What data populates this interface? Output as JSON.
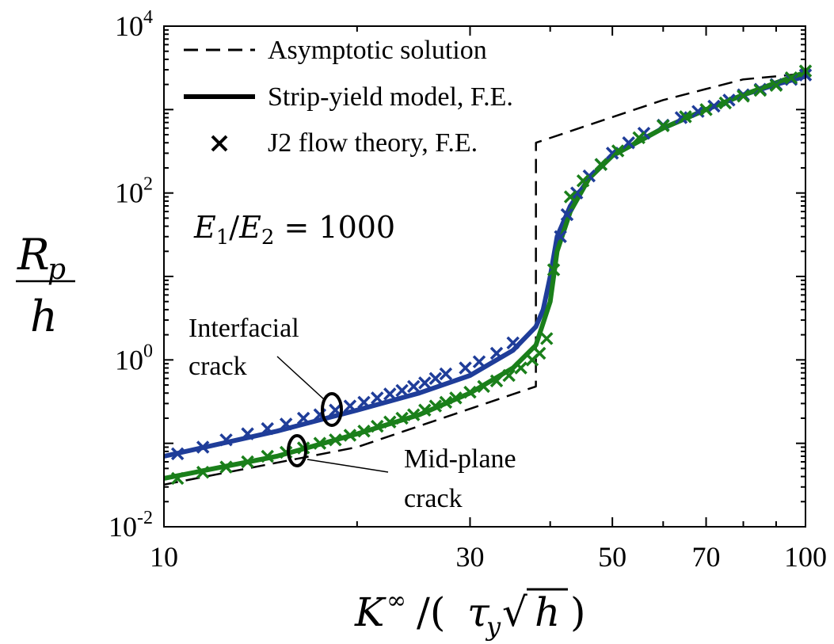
{
  "chart_data": {
    "type": "line",
    "xscale": "log",
    "yscale": "log",
    "xlim": [
      10,
      100
    ],
    "ylim": [
      0.01,
      10000
    ],
    "x_ticks": [
      {
        "value": 10,
        "label": "10"
      },
      {
        "value": 30,
        "label": "30"
      },
      {
        "value": 50,
        "label": "50"
      },
      {
        "value": 70,
        "label": "70"
      },
      {
        "value": 100,
        "label": "100"
      }
    ],
    "y_ticks": [
      {
        "value": 0.01,
        "base": "10",
        "exp": "-2"
      },
      {
        "value": 1,
        "base": "10",
        "exp": "0"
      },
      {
        "value": 100,
        "base": "10",
        "exp": "2"
      },
      {
        "value": 10000,
        "base": "10",
        "exp": "4"
      }
    ],
    "xlabel": "K∞/(τy√h)",
    "ylabel": "Rp/h",
    "grid": false,
    "legend_position": "top-left",
    "legend": [
      {
        "label": "Asymptotic solution",
        "style": "dashed"
      },
      {
        "label": "Strip-yield model, F.E.",
        "style": "solid"
      },
      {
        "label": "J2 flow theory, F.E.",
        "style": "marker-x"
      }
    ],
    "parameter_text": "E1/E2 = 1000",
    "annotations": [
      {
        "lines": [
          "Interfacial",
          "crack"
        ]
      },
      {
        "lines": [
          "Mid-plane",
          "crack"
        ]
      }
    ],
    "colors": {
      "interfacial": "#1f3d99",
      "midplane": "#1a7f1a",
      "asymptotic": "#000000"
    },
    "series": [
      {
        "name": "Asymptotic solution",
        "style": "dashed",
        "points": [
          [
            10,
            0.032
          ],
          [
            20,
            0.09
          ],
          [
            38,
            0.48
          ],
          [
            38.01,
            400
          ],
          [
            60,
            1300
          ],
          [
            80,
            2300
          ],
          [
            100,
            2700
          ]
        ]
      },
      {
        "name": "Strip-yield model, F.E. (interfacial crack)",
        "style": "solid",
        "color": "interfacial",
        "points": [
          [
            10,
            0.07
          ],
          [
            15,
            0.14
          ],
          [
            20,
            0.25
          ],
          [
            25,
            0.4
          ],
          [
            30,
            0.65
          ],
          [
            35,
            1.3
          ],
          [
            38,
            2.5
          ],
          [
            39,
            4
          ],
          [
            40,
            10
          ],
          [
            41,
            30
          ],
          [
            43,
            70
          ],
          [
            46,
            150
          ],
          [
            50,
            280
          ],
          [
            60,
            600
          ],
          [
            70,
            1000
          ],
          [
            80,
            1500
          ],
          [
            90,
            2000
          ],
          [
            100,
            2500
          ]
        ]
      },
      {
        "name": "Strip-yield model, F.E. (mid-plane crack)",
        "style": "solid",
        "color": "midplane",
        "points": [
          [
            10,
            0.038
          ],
          [
            15,
            0.07
          ],
          [
            20,
            0.13
          ],
          [
            25,
            0.22
          ],
          [
            30,
            0.4
          ],
          [
            35,
            0.8
          ],
          [
            38,
            1.5
          ],
          [
            40,
            5
          ],
          [
            41,
            20
          ],
          [
            43,
            60
          ],
          [
            46,
            150
          ],
          [
            50,
            280
          ],
          [
            60,
            600
          ],
          [
            70,
            1000
          ],
          [
            80,
            1500
          ],
          [
            90,
            2100
          ],
          [
            100,
            2800
          ]
        ]
      },
      {
        "name": "J2 flow theory, F.E. (interfacial crack)",
        "style": "marker-x",
        "color": "interfacial",
        "points": [
          [
            10.5,
            0.075
          ],
          [
            11.5,
            0.09
          ],
          [
            12.5,
            0.11
          ],
          [
            13.5,
            0.13
          ],
          [
            14.5,
            0.15
          ],
          [
            15.5,
            0.17
          ],
          [
            16.5,
            0.2
          ],
          [
            17.5,
            0.22
          ],
          [
            18.5,
            0.25
          ],
          [
            19.5,
            0.28
          ],
          [
            20.5,
            0.31
          ],
          [
            21.5,
            0.35
          ],
          [
            22.5,
            0.39
          ],
          [
            23.5,
            0.43
          ],
          [
            24.5,
            0.48
          ],
          [
            25.5,
            0.53
          ],
          [
            26.5,
            0.6
          ],
          [
            27.5,
            0.68
          ],
          [
            29.5,
            0.8
          ],
          [
            31,
            0.95
          ],
          [
            33,
            1.2
          ],
          [
            35,
            1.6
          ],
          [
            41.5,
            30
          ],
          [
            42.5,
            55
          ],
          [
            44,
            100
          ],
          [
            46,
            160
          ],
          [
            48,
            220
          ],
          [
            50,
            300
          ],
          [
            53,
            400
          ],
          [
            56,
            520
          ],
          [
            60,
            650
          ],
          [
            64,
            800
          ],
          [
            68,
            950
          ],
          [
            72,
            1100
          ],
          [
            76,
            1300
          ],
          [
            80,
            1500
          ],
          [
            85,
            1750
          ],
          [
            90,
            2000
          ],
          [
            95,
            2300
          ],
          [
            100,
            2600
          ]
        ]
      },
      {
        "name": "J2 flow theory, F.E. (mid-plane crack)",
        "style": "marker-x",
        "color": "midplane",
        "points": [
          [
            10.5,
            0.038
          ],
          [
            11.5,
            0.045
          ],
          [
            12.5,
            0.052
          ],
          [
            13.5,
            0.06
          ],
          [
            14.5,
            0.07
          ],
          [
            15.5,
            0.078
          ],
          [
            16.5,
            0.088
          ],
          [
            17.5,
            0.1
          ],
          [
            18.5,
            0.11
          ],
          [
            19.5,
            0.125
          ],
          [
            20.5,
            0.14
          ],
          [
            21.5,
            0.16
          ],
          [
            22.5,
            0.18
          ],
          [
            23.5,
            0.2
          ],
          [
            24.5,
            0.22
          ],
          [
            25.5,
            0.25
          ],
          [
            26.5,
            0.28
          ],
          [
            27.5,
            0.31
          ],
          [
            28.5,
            0.35
          ],
          [
            30,
            0.41
          ],
          [
            31.5,
            0.48
          ],
          [
            33,
            0.56
          ],
          [
            34.5,
            0.65
          ],
          [
            36,
            0.8
          ],
          [
            37.5,
            1.0
          ],
          [
            38.5,
            1.2
          ],
          [
            39.5,
            1.8
          ],
          [
            40.5,
            12
          ],
          [
            43,
            90
          ],
          [
            45,
            140
          ],
          [
            48,
            220
          ],
          [
            51,
            320
          ],
          [
            55,
            460
          ],
          [
            60,
            640
          ],
          [
            65,
            820
          ],
          [
            70,
            1000
          ],
          [
            75,
            1200
          ],
          [
            80,
            1450
          ],
          [
            85,
            1700
          ],
          [
            90,
            1950
          ],
          [
            95,
            2400
          ],
          [
            100,
            2900
          ]
        ]
      }
    ]
  }
}
